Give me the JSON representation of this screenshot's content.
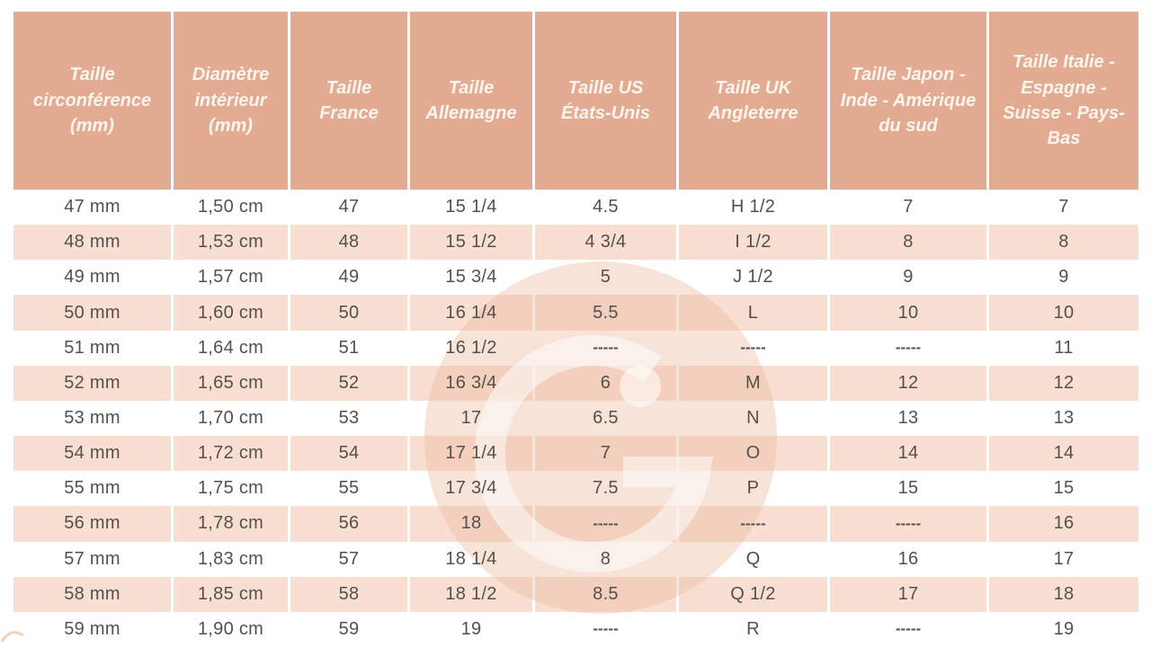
{
  "colors": {
    "header_bg": "#e2ab92",
    "stripe_bg": "#f9dfd2",
    "row_bg": "#ffffff",
    "header_text": "#fcf5ee",
    "body_text": "#55504b",
    "watermark_tint": "#ecb99e"
  },
  "watermark": {
    "icon": "ring-logo-g",
    "letter_hint": "G"
  },
  "chart_data": {
    "type": "table",
    "columns": [
      "Taille circonférence (mm)",
      "Diamètre intérieur (mm)",
      "Taille France",
      "Taille Allemagne",
      "Taille US États-Unis",
      "Taille UK Angleterre",
      "Taille Japon - Inde - Amérique du sud",
      "Taille Italie - Espagne - Suisse - Pays-Bas"
    ],
    "rows": [
      [
        "47 mm",
        "1,50 cm",
        "47",
        "15 1/4",
        "4.5",
        "H 1/2",
        "7",
        "7"
      ],
      [
        "48 mm",
        "1,53 cm",
        "48",
        "15 1/2",
        "4 3/4",
        "I 1/2",
        "8",
        "8"
      ],
      [
        "49 mm",
        "1,57 cm",
        "49",
        "15 3/4",
        "5",
        "J 1/2",
        "9",
        "9"
      ],
      [
        "50 mm",
        "1,60 cm",
        "50",
        "16 1/4",
        "5.5",
        "L",
        "10",
        "10"
      ],
      [
        "51 mm",
        "1,64 cm",
        "51",
        "16 1/2",
        "-----",
        "-----",
        "-----",
        "11"
      ],
      [
        "52 mm",
        "1,65 cm",
        "52",
        "16 3/4",
        "6",
        "M",
        "12",
        "12"
      ],
      [
        "53 mm",
        "1,70 cm",
        "53",
        "17",
        "6.5",
        "N",
        "13",
        "13"
      ],
      [
        "54 mm",
        "1,72 cm",
        "54",
        "17 1/4",
        "7",
        "O",
        "14",
        "14"
      ],
      [
        "55 mm",
        "1,75 cm",
        "55",
        "17 3/4",
        "7.5",
        "P",
        "15",
        "15"
      ],
      [
        "56 mm",
        "1,78 cm",
        "56",
        "18",
        "-----",
        "-----",
        "-----",
        "16"
      ],
      [
        "57 mm",
        "1,83 cm",
        "57",
        "18 1/4",
        "8",
        "Q",
        "16",
        "17"
      ],
      [
        "58 mm",
        "1,85 cm",
        "58",
        "18 1/2",
        "8.5",
        "Q 1/2",
        "17",
        "18"
      ],
      [
        "59 mm",
        "1,90 cm",
        "59",
        "19",
        "-----",
        "R",
        "-----",
        "19"
      ]
    ]
  }
}
